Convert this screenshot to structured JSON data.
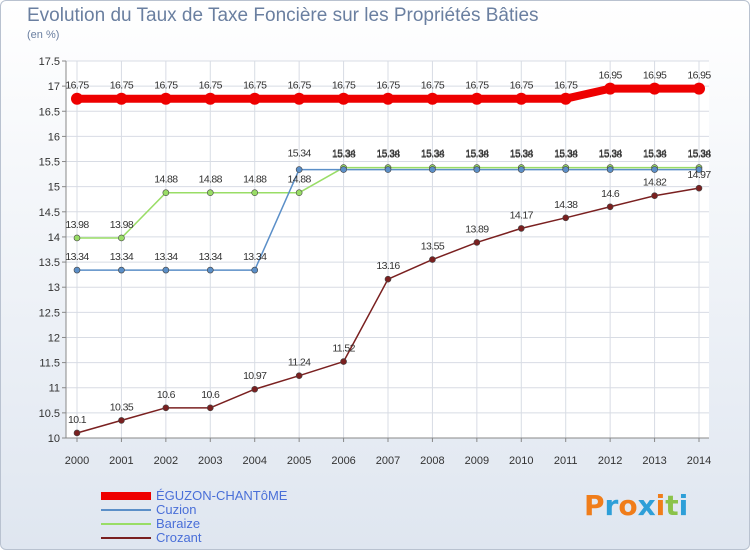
{
  "chart_data": {
    "type": "line",
    "title": "Evolution du Taux de Taxe Foncière sur les Propriétés Bâties",
    "subtitle": "(en %)",
    "x": [
      "2000",
      "2001",
      "2002",
      "2003",
      "2004",
      "2005",
      "2006",
      "2007",
      "2008",
      "2009",
      "2010",
      "2011",
      "2012",
      "2013",
      "2014"
    ],
    "ylim": [
      10,
      17.5
    ],
    "yticks": [
      "10",
      "10.5",
      "11",
      "11.5",
      "12",
      "12.5",
      "13",
      "13.5",
      "14",
      "14.5",
      "15",
      "15.5",
      "16",
      "16.5",
      "17",
      "17.5"
    ],
    "grid": true,
    "series": [
      {
        "name": "ÉGUZON-CHANTôME",
        "color": "#ee0000",
        "values": [
          16.75,
          16.75,
          16.75,
          16.75,
          16.75,
          16.75,
          16.75,
          16.75,
          16.75,
          16.75,
          16.75,
          16.75,
          16.95,
          16.95,
          16.95
        ],
        "labels": [
          "16.75",
          "16.75",
          "16.75",
          "16.75",
          "16.75",
          "16.75",
          "16.75",
          "16.75",
          "16.75",
          "16.75",
          "16.75",
          "16.75",
          "16.95",
          "16.95",
          "16.95"
        ]
      },
      {
        "name": "Cuzion",
        "color": "#5b8fc8",
        "values": [
          13.34,
          13.34,
          13.34,
          13.34,
          13.34,
          15.34,
          15.34,
          15.34,
          15.34,
          15.34,
          15.34,
          15.34,
          15.34,
          15.34,
          15.34
        ],
        "labels": [
          "13.34",
          "13.34",
          "13.34",
          "13.34",
          "13.34",
          "15.34",
          "15.34",
          "15.34",
          "15.34",
          "15.34",
          "15.34",
          "15.34",
          "15.34",
          "15.34",
          "15.34"
        ]
      },
      {
        "name": "Baraize",
        "color": "#99dd66",
        "values": [
          13.98,
          13.98,
          14.88,
          14.88,
          14.88,
          14.88,
          15.38,
          15.38,
          15.38,
          15.38,
          15.38,
          15.38,
          15.38,
          15.38,
          15.38
        ],
        "labels": [
          "13.98",
          "13.98",
          "14.88",
          "14.88",
          "14.88",
          "14.88",
          "15.38",
          "15.38",
          "15.38",
          "15.38",
          "15.38",
          "15.38",
          "15.38",
          "15.38",
          "15.38"
        ]
      },
      {
        "name": "Crozant",
        "color": "#7a2020",
        "values": [
          10.1,
          10.35,
          10.6,
          10.6,
          10.97,
          11.24,
          11.52,
          13.16,
          13.55,
          13.89,
          14.17,
          14.38,
          14.6,
          14.82,
          14.97
        ],
        "labels": [
          "10.1",
          "10.35",
          "10.6",
          "10.6",
          "10.97",
          "11.24",
          "11.52",
          "13.16",
          "13.55",
          "13.89",
          "14.17",
          "14.38",
          "14.6",
          "14.82",
          "14.97"
        ]
      }
    ]
  },
  "logo": {
    "text": "Proxiti",
    "letters": [
      {
        "char": "P",
        "color": "#f07d1a"
      },
      {
        "char": "r",
        "color": "#2e9fd8"
      },
      {
        "char": "o",
        "color": "#f07d1a"
      },
      {
        "char": "x",
        "color": "#2e9fd8"
      },
      {
        "char": "i",
        "color": "#f07d1a"
      },
      {
        "char": "t",
        "color": "#8bc34a"
      },
      {
        "char": "i",
        "color": "#2e9fd8"
      }
    ]
  }
}
